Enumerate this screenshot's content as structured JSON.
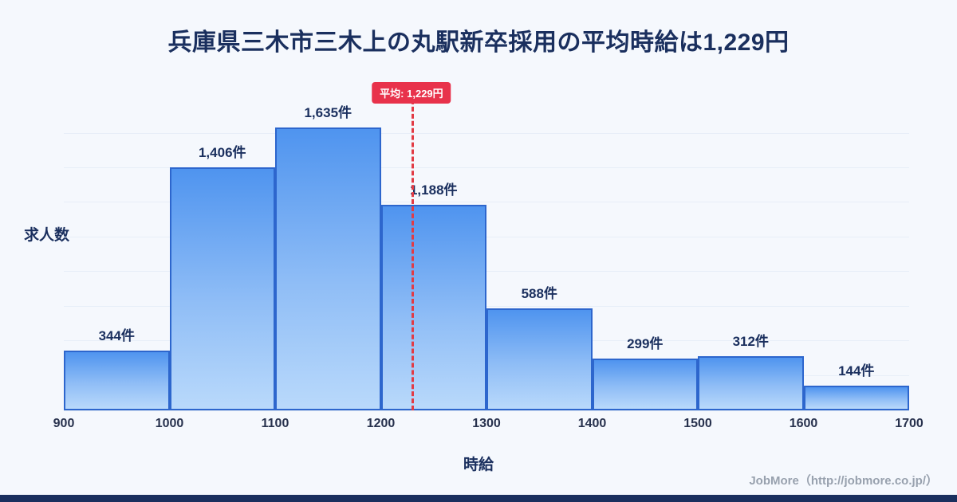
{
  "page": {
    "footer": "JobMore（http://jobmore.co.jp/）"
  },
  "chart_data": {
    "type": "bar",
    "title": "兵庫県三木市三木上の丸駅新卒採用の平均時給は1,229円",
    "xlabel": "時給",
    "ylabel": "求人数",
    "bin_edges": [
      900,
      1000,
      1100,
      1200,
      1300,
      1400,
      1500,
      1600,
      1700
    ],
    "x_ticks": [
      "900",
      "1000",
      "1100",
      "1200",
      "1300",
      "1400",
      "1500",
      "1600",
      "1700"
    ],
    "values": [
      344,
      1406,
      1635,
      1188,
      588,
      299,
      312,
      144
    ],
    "value_labels": [
      "344件",
      "1,406件",
      "1,635件",
      "1,188件",
      "588件",
      "299件",
      "312件",
      "144件"
    ],
    "average": 1229,
    "average_label": "平均: 1,229円",
    "xlim": [
      900,
      1700
    ],
    "ylim": [
      0,
      1750
    ],
    "y_grid_step": 200,
    "grid": true,
    "legend": "none",
    "colors": {
      "bar_top": "#4f94ef",
      "bar_bottom": "#b9d9fb",
      "bar_border": "#2d66cd",
      "average_line": "#e23b45",
      "badge_background": "#e8324b",
      "title_text": "#1a2f5e",
      "page_background": "#f5f8fd",
      "bottom_bar": "#1a2f5e"
    }
  }
}
